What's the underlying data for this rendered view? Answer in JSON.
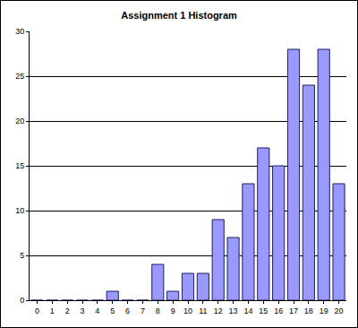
{
  "chart_data": {
    "type": "bar",
    "title": "Assignment 1 Histogram",
    "categories": [
      "0",
      "1",
      "2",
      "3",
      "4",
      "5",
      "6",
      "7",
      "8",
      "9",
      "10",
      "11",
      "12",
      "13",
      "14",
      "15",
      "16",
      "17",
      "18",
      "19",
      "20"
    ],
    "values": [
      0,
      0,
      0,
      0,
      0,
      1,
      0,
      0,
      4,
      1,
      3,
      3,
      9,
      7,
      13,
      17,
      15,
      28,
      24,
      28,
      13
    ],
    "color": "#9999ff",
    "ylim": [
      0,
      30
    ],
    "yticks": [
      0,
      5,
      10,
      15,
      20,
      25,
      30
    ],
    "grid": true
  }
}
